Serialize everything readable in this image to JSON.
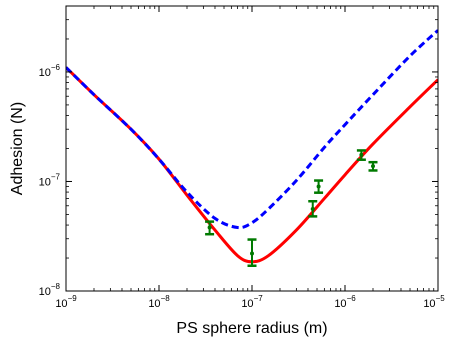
{
  "chart_data": {
    "type": "line",
    "x_scale": "log",
    "y_scale": "log",
    "xlabel": "PS sphere radius (m)",
    "ylabel": "Adhesion (N)",
    "xlim": [
      1e-09,
      1e-05
    ],
    "ylim": [
      1e-08,
      4e-06
    ],
    "grid": false,
    "x_ticks": [
      {
        "value": 1e-09,
        "base": "10",
        "exp": "−9"
      },
      {
        "value": 1e-08,
        "base": "10",
        "exp": "−8"
      },
      {
        "value": 1e-07,
        "base": "10",
        "exp": "−7"
      },
      {
        "value": 1e-06,
        "base": "10",
        "exp": "−6"
      },
      {
        "value": 1e-05,
        "base": "10",
        "exp": "−5"
      }
    ],
    "y_ticks": [
      {
        "value": 1e-08,
        "base": "10",
        "exp": "−8"
      },
      {
        "value": 1e-07,
        "base": "10",
        "exp": "−7"
      },
      {
        "value": 1e-06,
        "base": "10",
        "exp": "−6"
      }
    ],
    "series": [
      {
        "style": "solid",
        "color": "#ff0000",
        "points": [
          [
            1e-09,
            1.1e-06
          ],
          [
            2e-09,
            6.2e-07
          ],
          [
            5e-09,
            3e-07
          ],
          [
            1e-08,
            1.6e-07
          ],
          [
            2e-08,
            7.5e-08
          ],
          [
            4e-08,
            3.6e-08
          ],
          [
            7e-08,
            2.1e-08
          ],
          [
            1e-07,
            1.85e-08
          ],
          [
            1.5e-07,
            2.1e-08
          ],
          [
            3e-07,
            3.6e-08
          ],
          [
            6e-07,
            7e-08
          ],
          [
            1e-06,
            1.15e-07
          ],
          [
            2e-06,
            2.2e-07
          ],
          [
            5e-06,
            4.8e-07
          ],
          [
            1e-05,
            8.5e-07
          ]
        ]
      },
      {
        "style": "dashed",
        "color": "#0000ff",
        "points": [
          [
            1e-09,
            1.1e-06
          ],
          [
            2e-09,
            6.2e-07
          ],
          [
            5e-09,
            3e-07
          ],
          [
            1e-08,
            1.6e-07
          ],
          [
            2e-08,
            8e-08
          ],
          [
            4e-08,
            4.6e-08
          ],
          [
            7e-08,
            3.8e-08
          ],
          [
            1e-07,
            4.2e-08
          ],
          [
            1.5e-07,
            5.6e-08
          ],
          [
            3e-07,
            1.02e-07
          ],
          [
            6e-07,
            2.05e-07
          ],
          [
            1e-06,
            3.3e-07
          ],
          [
            2e-06,
            6.2e-07
          ],
          [
            5e-06,
            1.4e-06
          ],
          [
            1e-05,
            2.4e-06
          ]
        ]
      }
    ],
    "error_bars": {
      "color": "#007a00",
      "points": [
        {
          "x": 3.5e-08,
          "y": 3.8e-08,
          "low": 3.3e-08,
          "high": 4.3e-08
        },
        {
          "x": 1e-07,
          "y": 2.2e-08,
          "low": 1.7e-08,
          "high": 2.95e-08
        },
        {
          "x": 4.5e-07,
          "y": 5.6e-08,
          "low": 4.8e-08,
          "high": 6.6e-08
        },
        {
          "x": 5.2e-07,
          "y": 9e-08,
          "low": 7.9e-08,
          "high": 1.02e-07
        },
        {
          "x": 1.5e-06,
          "y": 1.75e-07,
          "low": 1.58e-07,
          "high": 1.92e-07
        },
        {
          "x": 2e-06,
          "y": 1.38e-07,
          "low": 1.26e-07,
          "high": 1.5e-07
        }
      ]
    }
  }
}
